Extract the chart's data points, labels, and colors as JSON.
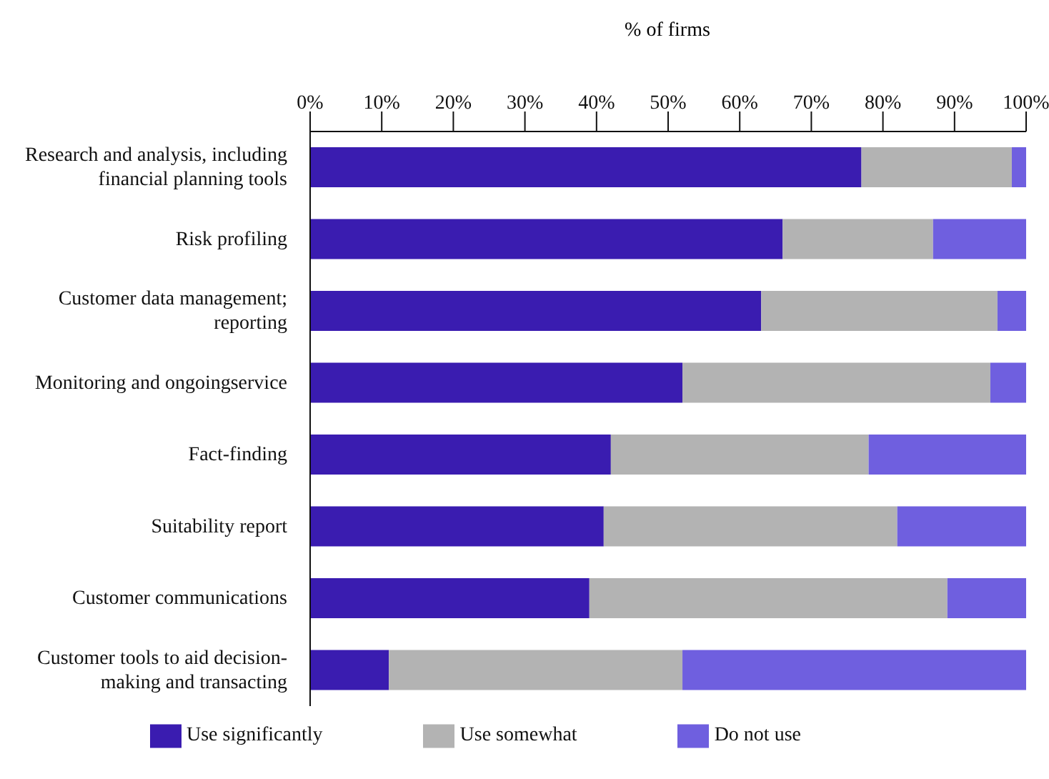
{
  "chart_data": {
    "type": "bar",
    "orientation": "horizontal",
    "stacked": true,
    "xlabel": "% of firms",
    "categories": [
      "Research and analysis, including financial planning tools",
      "Risk profiling",
      "Customer data management; reporting",
      "Monitoring and ongoingservice",
      "Fact-finding",
      "Suitability report",
      "Customer communications",
      "Customer tools to aid decision-making and transacting"
    ],
    "series": [
      {
        "name": "Use significantly",
        "color": "#3a1cb0",
        "values": [
          77,
          66,
          63,
          52,
          42,
          41,
          39,
          11
        ]
      },
      {
        "name": "Use somewhat",
        "color": "#b3b3b3",
        "values": [
          21,
          21,
          33,
          43,
          36,
          41,
          50,
          41
        ]
      },
      {
        "name": "Do not use",
        "color": "#6f5fdf",
        "values": [
          2,
          13,
          4,
          5,
          22,
          18,
          11,
          48
        ]
      }
    ],
    "xlim": [
      0,
      100
    ],
    "xticks": [
      {
        "value": 0,
        "label": "0%"
      },
      {
        "value": 10,
        "label": "10%"
      },
      {
        "value": 20,
        "label": "20%"
      },
      {
        "value": 30,
        "label": "30%"
      },
      {
        "value": 40,
        "label": "40%"
      },
      {
        "value": 50,
        "label": "50%"
      },
      {
        "value": 60,
        "label": "60%"
      },
      {
        "value": 70,
        "label": "70%"
      },
      {
        "value": 80,
        "label": "80%"
      },
      {
        "value": 90,
        "label": "90%"
      },
      {
        "value": 100,
        "label": "100%"
      }
    ],
    "grid": false,
    "legend": "bottom"
  }
}
